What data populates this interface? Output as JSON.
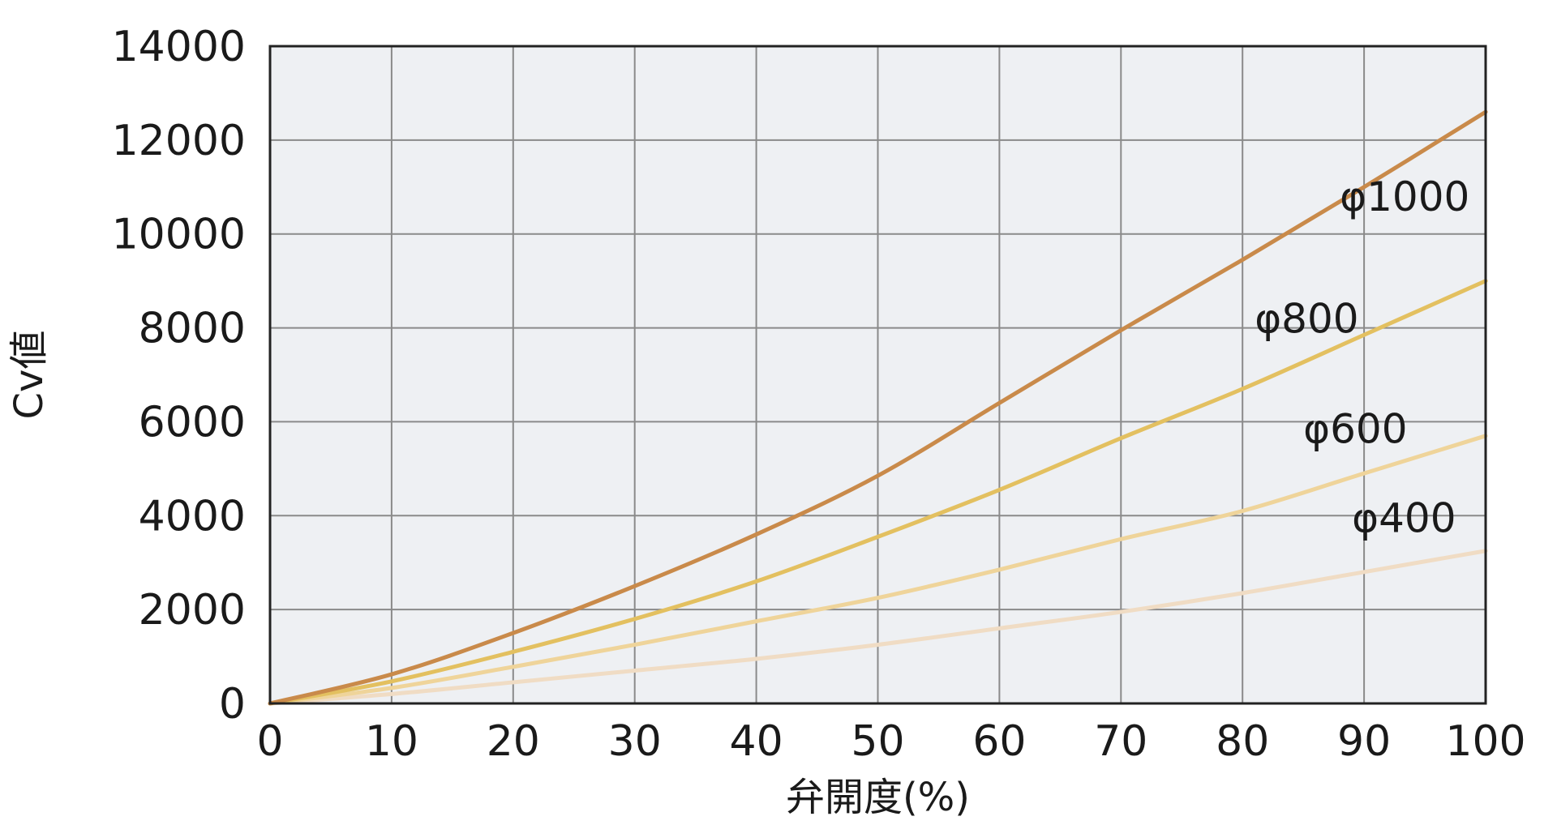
{
  "chart_data": {
    "type": "line",
    "title": "",
    "xlabel": "弁開度(%)",
    "ylabel": "Cv値",
    "xlim": [
      0,
      100
    ],
    "ylim": [
      0,
      14000
    ],
    "x_ticks": [
      0,
      10,
      20,
      30,
      40,
      50,
      60,
      70,
      80,
      90,
      100
    ],
    "y_ticks": [
      0,
      2000,
      4000,
      6000,
      8000,
      10000,
      12000,
      14000
    ],
    "grid": true,
    "x": [
      0,
      10,
      20,
      30,
      40,
      50,
      60,
      70,
      80,
      90,
      100
    ],
    "series": [
      {
        "name": "φ1000",
        "color": "#c98a4a",
        "values": [
          0,
          620,
          1500,
          2500,
          3600,
          4850,
          6400,
          7950,
          9450,
          11000,
          12600
        ],
        "label_at": [
          88,
          10500
        ]
      },
      {
        "name": "φ800",
        "color": "#e3c060",
        "values": [
          0,
          470,
          1100,
          1800,
          2600,
          3550,
          4550,
          5650,
          6700,
          7850,
          9000
        ],
        "label_at": [
          81,
          7900
        ]
      },
      {
        "name": "φ600",
        "color": "#efd49a",
        "values": [
          0,
          330,
          780,
          1250,
          1750,
          2250,
          2850,
          3500,
          4100,
          4900,
          5700
        ],
        "label_at": [
          85,
          5550
        ]
      },
      {
        "name": "φ400",
        "color": "#f0dcc4",
        "values": [
          0,
          200,
          450,
          700,
          950,
          1250,
          1600,
          1950,
          2350,
          2800,
          3250
        ],
        "label_at": [
          89,
          3650
        ]
      }
    ],
    "colors": {
      "plot_background": "#eef0f3",
      "grid": "#8a8a8a",
      "frame": "#222222"
    }
  }
}
